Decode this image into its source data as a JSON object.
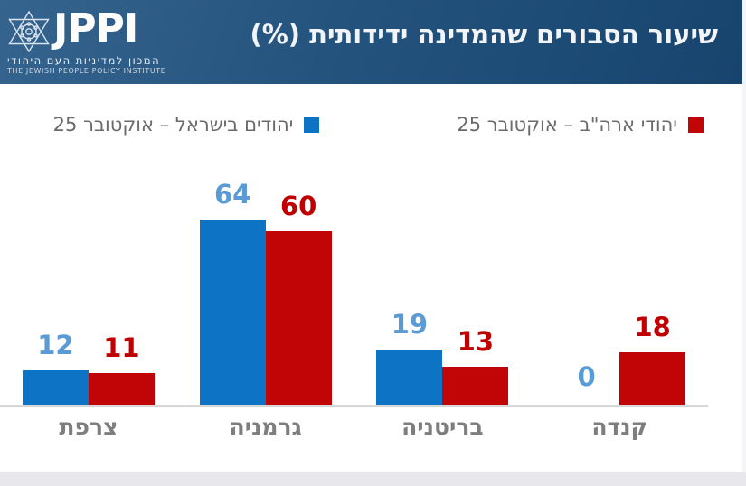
{
  "header": {
    "title": "שיעור הסבורים שהמדינה ידידותית (%)",
    "logo": {
      "acronym": "JPPI",
      "subtitle_he": "המכון למדיניות העם היהודי",
      "subtitle_en": "THE JEWISH PEOPLE POLICY INSTITUTE"
    }
  },
  "legend": [
    {
      "slug": "us-jews",
      "label": "יהודי ארה\"ב – אוקטובר 25",
      "color": "#c10506"
    },
    {
      "slug": "israel-jews",
      "label": "יהודים בישראל – אוקטובר 25",
      "color": "#0d73c5"
    }
  ],
  "chart_data": {
    "type": "bar",
    "direction": "rtl",
    "title": "שיעור הסבורים שהמדינה ידידותית (%)",
    "categories": [
      "צרפת",
      "גרמניה",
      "בריטניה",
      "קנדה"
    ],
    "category_slugs": [
      "france",
      "germany",
      "britain",
      "canada"
    ],
    "series": [
      {
        "name": "יהודים בישראל – אוקטובר 25",
        "slug": "israel-jews",
        "color": "#0d73c5",
        "label_color": "#5b9bd5",
        "values": [
          12,
          64,
          19,
          0
        ]
      },
      {
        "name": "יהודי ארה\"ב – אוקטובר 25",
        "slug": "us-jews",
        "color": "#c10506",
        "label_color": "#c00000",
        "values": [
          11,
          60,
          13,
          18
        ]
      }
    ],
    "value_labels": true,
    "ylim": [
      0,
      70
    ],
    "grid": false,
    "legend_position": "top"
  },
  "colors": {
    "header_gradient_start": "#35648e",
    "header_gradient_end": "#17446d",
    "category_label": "#7e7e7e",
    "legend_text": "#6a6a6a",
    "baseline": "#d8d8d8",
    "page_background": "#e8e7ec",
    "card_background": "#ffffff"
  }
}
